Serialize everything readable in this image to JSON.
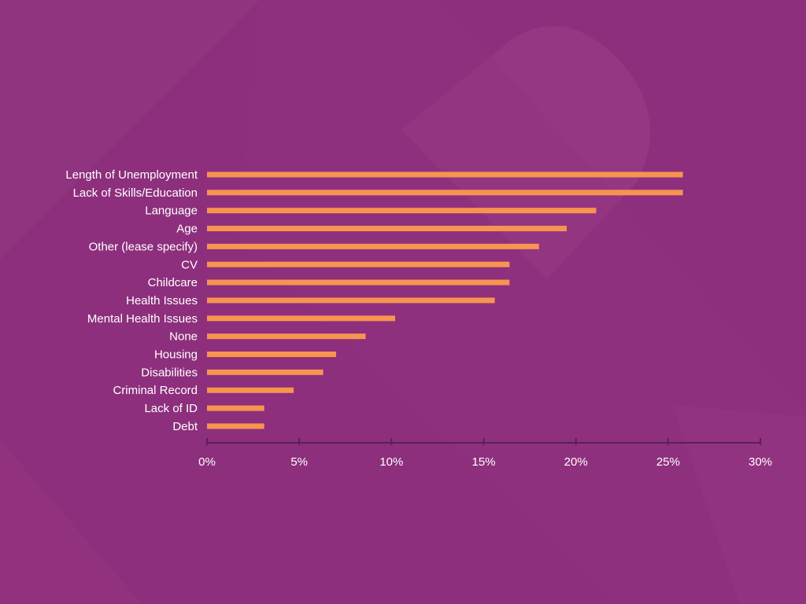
{
  "colors": {
    "background": "#8d2f7d",
    "bar": "#f7944f",
    "axis": "#5b1f57",
    "text": "#ffffff"
  },
  "chart_data": {
    "type": "bar",
    "orientation": "horizontal",
    "categories": [
      "Length of Unemployment",
      "Lack of Skills/Education",
      "Language",
      "Age",
      "Other (lease specify)",
      "CV",
      "Childcare",
      "Health Issues",
      "Mental Health Issues",
      "None",
      "Housing",
      "Disabilities",
      "Criminal Record",
      "Lack of ID",
      "Debt"
    ],
    "values": [
      25.8,
      25.8,
      21.1,
      19.5,
      18.0,
      16.4,
      16.4,
      15.6,
      10.2,
      8.6,
      7.0,
      6.3,
      4.7,
      3.1,
      3.1
    ],
    "unit": "%",
    "xlim": [
      0,
      30
    ],
    "xticks": [
      "0%",
      "5%",
      "10%",
      "15%",
      "20%",
      "25%",
      "30%"
    ],
    "title": "",
    "xlabel": "",
    "ylabel": "",
    "grid": false,
    "legend": "none"
  }
}
